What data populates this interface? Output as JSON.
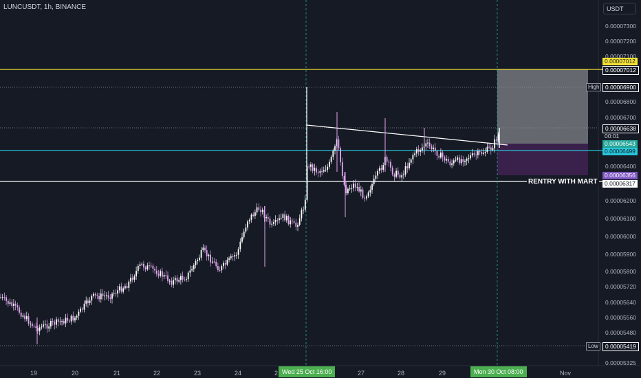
{
  "header": {
    "symbol": "LUNCUSDT, 1h, BINANCE",
    "currency": "USDT"
  },
  "price_axis": [
    "0.00007300",
    "0.00007200",
    "0.00007100",
    "0.00006900",
    "0.00006800",
    "0.00006700",
    "0.00006600",
    "0.00006400",
    "0.00006300",
    "0.00006200",
    "0.00006100",
    "0.00006000",
    "0.00005900",
    "0.00005800",
    "0.00005720",
    "0.00005640",
    "0.00005560",
    "0.00005480",
    "0.00005325"
  ],
  "time_axis": [
    "19",
    "20",
    "21",
    "22",
    "23",
    "24",
    "2",
    "27",
    "28",
    "29",
    "Nov"
  ],
  "tags": {
    "yellow_top": "0.00007012",
    "yellow_bottom": "0.00007012",
    "high_label": "High",
    "high_value": "0.00006900",
    "current_price": "0.00006638",
    "countdown": "00:01",
    "green_price": "0.00006543",
    "cyan_price": "0.00006499",
    "purple_price": "0.00006356",
    "white_line_price": "0.00006317",
    "low_label": "Low",
    "low_value": "0.00005419"
  },
  "date_highlights": {
    "left": "Wed 25 Oct   16:00",
    "right": "Mon 30 Oct   08:00"
  },
  "annotation": "RENTRY WITH MART",
  "colors": {
    "background": "#161a25",
    "candle_up": "#ffffff",
    "candle_down": "#e2a6f0",
    "yellow_line": "#f5e135",
    "cyan_line": "#26c6da",
    "white_line": "#ffffff",
    "highlight_green": "#4caf50",
    "purple_tag": "#7e57c2"
  }
}
